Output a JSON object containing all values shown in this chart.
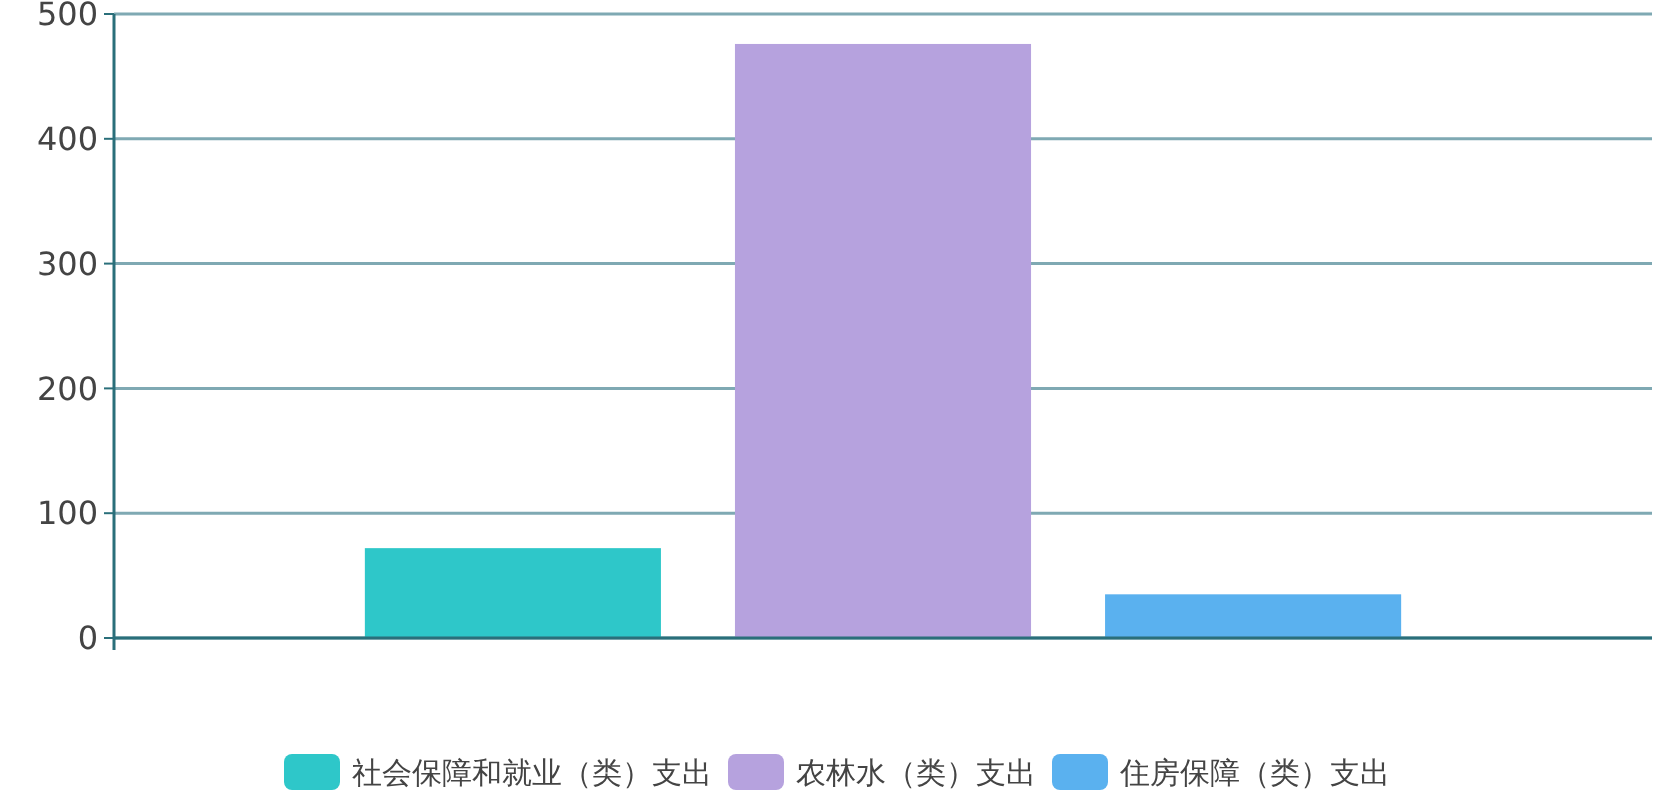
{
  "chart_data": {
    "type": "bar",
    "categories": [
      null
    ],
    "series": [
      {
        "name": "社会保障和就业（类）支出",
        "color": "#2ec7c9",
        "values": [
          72
        ]
      },
      {
        "name": "农林水（类）支出",
        "color": "#b6a2de",
        "values": [
          476
        ]
      },
      {
        "name": "住房保障（类）支出",
        "color": "#5ab1ef",
        "values": [
          35
        ]
      }
    ],
    "ylim": [
      0,
      500
    ],
    "yticks": [
      0,
      100,
      200,
      300,
      400,
      500
    ],
    "grid": "y",
    "legend": "bottom"
  }
}
